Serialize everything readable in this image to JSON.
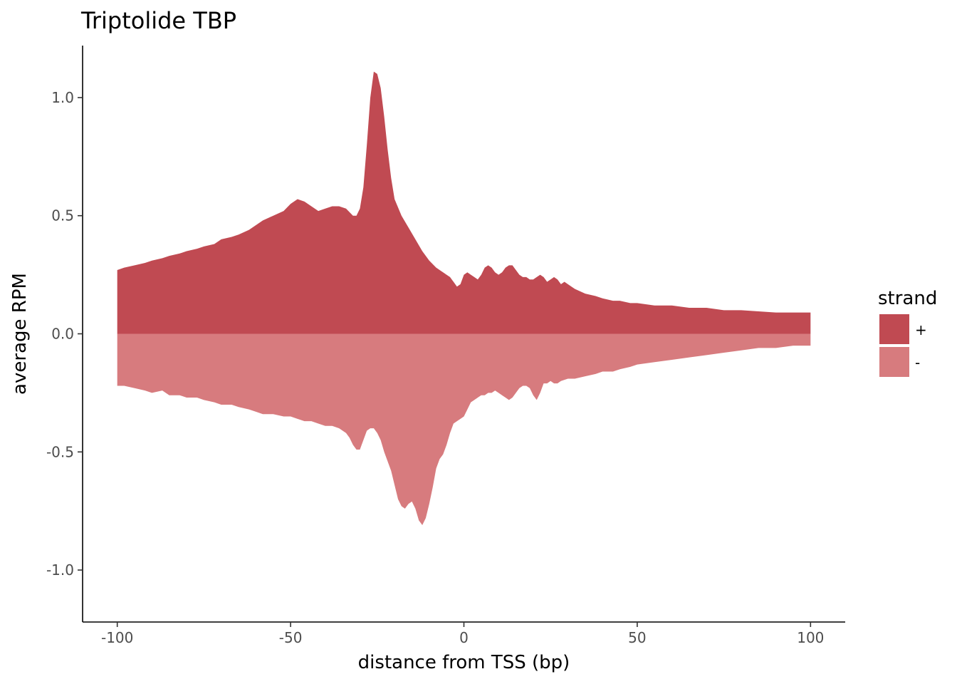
{
  "chart_data": {
    "type": "area",
    "title": "Triptolide TBP",
    "xlabel": "distance from TSS (bp)",
    "ylabel": "average RPM",
    "xlim": [
      -110,
      110
    ],
    "ylim": [
      -1.22,
      1.22
    ],
    "xticks": [
      -100,
      -50,
      0,
      50,
      100
    ],
    "xtick_labels": [
      "-100",
      "-50",
      "0",
      "50",
      "100"
    ],
    "yticks": [
      -1.0,
      -0.5,
      0.0,
      0.5,
      1.0
    ],
    "ytick_labels": [
      "-1.0",
      "-0.5",
      "0.0",
      "0.5",
      "1.0"
    ],
    "grid": false,
    "legend": {
      "title": "strand",
      "position": "right"
    },
    "series": [
      {
        "name": "+",
        "color": "#c04a52",
        "x": [
          -100,
          -98,
          -95,
          -92,
          -90,
          -87,
          -85,
          -82,
          -80,
          -77,
          -75,
          -72,
          -70,
          -67,
          -65,
          -62,
          -60,
          -58,
          -55,
          -52,
          -50,
          -48,
          -46,
          -44,
          -42,
          -40,
          -38,
          -36,
          -34,
          -32,
          -31,
          -30,
          -29,
          -28,
          -27,
          -26,
          -25,
          -24,
          -23,
          -22,
          -21,
          -20,
          -18,
          -16,
          -14,
          -12,
          -10,
          -8,
          -6,
          -5,
          -4,
          -3,
          -2,
          -1,
          0,
          1,
          2,
          3,
          4,
          5,
          6,
          7,
          8,
          9,
          10,
          11,
          12,
          13,
          14,
          15,
          16,
          17,
          18,
          19,
          20,
          21,
          22,
          23,
          24,
          25,
          26,
          27,
          28,
          29,
          30,
          32,
          35,
          38,
          40,
          43,
          45,
          48,
          50,
          55,
          60,
          65,
          70,
          75,
          80,
          85,
          90,
          95,
          100
        ],
        "values": [
          0.27,
          0.28,
          0.29,
          0.3,
          0.31,
          0.32,
          0.33,
          0.34,
          0.35,
          0.36,
          0.37,
          0.38,
          0.4,
          0.41,
          0.42,
          0.44,
          0.46,
          0.48,
          0.5,
          0.52,
          0.55,
          0.57,
          0.56,
          0.54,
          0.52,
          0.53,
          0.54,
          0.54,
          0.53,
          0.5,
          0.5,
          0.53,
          0.62,
          0.8,
          1.0,
          1.11,
          1.1,
          1.04,
          0.92,
          0.78,
          0.66,
          0.57,
          0.5,
          0.45,
          0.4,
          0.35,
          0.31,
          0.28,
          0.26,
          0.25,
          0.24,
          0.22,
          0.2,
          0.21,
          0.25,
          0.26,
          0.25,
          0.24,
          0.23,
          0.25,
          0.28,
          0.29,
          0.28,
          0.26,
          0.25,
          0.26,
          0.28,
          0.29,
          0.29,
          0.27,
          0.25,
          0.24,
          0.24,
          0.23,
          0.23,
          0.24,
          0.25,
          0.24,
          0.22,
          0.23,
          0.24,
          0.23,
          0.21,
          0.22,
          0.21,
          0.19,
          0.17,
          0.16,
          0.15,
          0.14,
          0.14,
          0.13,
          0.13,
          0.12,
          0.12,
          0.11,
          0.11,
          0.1,
          0.1,
          0.095,
          0.09,
          0.09,
          0.09
        ]
      },
      {
        "name": "-",
        "color": "#d77b7e",
        "x": [
          -100,
          -98,
          -95,
          -92,
          -90,
          -87,
          -85,
          -82,
          -80,
          -77,
          -75,
          -72,
          -70,
          -67,
          -65,
          -62,
          -60,
          -58,
          -55,
          -52,
          -50,
          -48,
          -46,
          -44,
          -42,
          -40,
          -38,
          -36,
          -34,
          -33,
          -32,
          -31,
          -30,
          -29,
          -28,
          -27,
          -26,
          -25,
          -24,
          -23,
          -22,
          -21,
          -20,
          -19,
          -18,
          -17,
          -16,
          -15,
          -14,
          -13,
          -12,
          -11,
          -10,
          -9,
          -8,
          -7,
          -6,
          -5,
          -4,
          -3,
          -2,
          -1,
          0,
          1,
          2,
          3,
          4,
          5,
          6,
          7,
          8,
          9,
          10,
          11,
          12,
          13,
          14,
          15,
          16,
          17,
          18,
          19,
          20,
          21,
          22,
          23,
          24,
          25,
          26,
          27,
          28,
          30,
          32,
          35,
          38,
          40,
          43,
          45,
          48,
          50,
          55,
          60,
          65,
          70,
          75,
          80,
          85,
          90,
          95,
          100
        ],
        "values": [
          -0.22,
          -0.22,
          -0.23,
          -0.24,
          -0.25,
          -0.24,
          -0.26,
          -0.26,
          -0.27,
          -0.27,
          -0.28,
          -0.29,
          -0.3,
          -0.3,
          -0.31,
          -0.32,
          -0.33,
          -0.34,
          -0.34,
          -0.35,
          -0.35,
          -0.36,
          -0.37,
          -0.37,
          -0.38,
          -0.39,
          -0.39,
          -0.4,
          -0.42,
          -0.44,
          -0.47,
          -0.49,
          -0.49,
          -0.45,
          -0.41,
          -0.4,
          -0.4,
          -0.42,
          -0.45,
          -0.5,
          -0.54,
          -0.58,
          -0.64,
          -0.7,
          -0.73,
          -0.74,
          -0.72,
          -0.71,
          -0.74,
          -0.79,
          -0.81,
          -0.78,
          -0.72,
          -0.65,
          -0.57,
          -0.53,
          -0.51,
          -0.47,
          -0.42,
          -0.38,
          -0.37,
          -0.36,
          -0.35,
          -0.32,
          -0.29,
          -0.28,
          -0.27,
          -0.26,
          -0.26,
          -0.25,
          -0.25,
          -0.24,
          -0.25,
          -0.26,
          -0.27,
          -0.28,
          -0.27,
          -0.25,
          -0.23,
          -0.22,
          -0.22,
          -0.23,
          -0.26,
          -0.28,
          -0.25,
          -0.21,
          -0.21,
          -0.2,
          -0.21,
          -0.21,
          -0.2,
          -0.19,
          -0.19,
          -0.18,
          -0.17,
          -0.16,
          -0.16,
          -0.15,
          -0.14,
          -0.13,
          -0.12,
          -0.11,
          -0.1,
          -0.09,
          -0.08,
          -0.07,
          -0.06,
          -0.06,
          -0.05,
          -0.05
        ]
      }
    ]
  }
}
